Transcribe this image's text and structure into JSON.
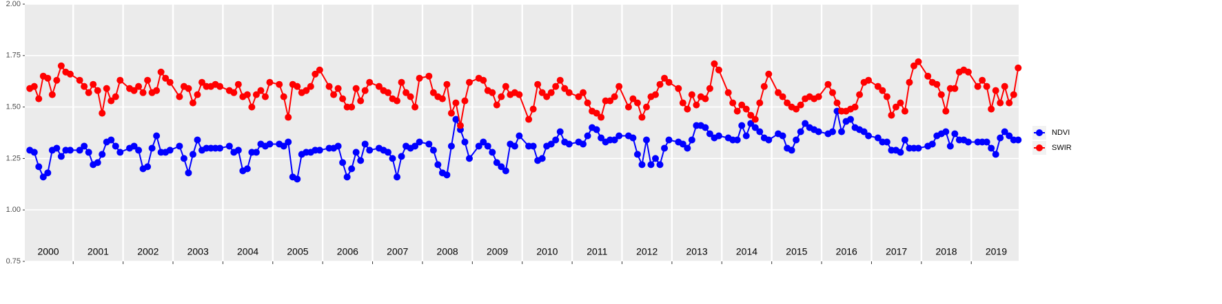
{
  "chart_data": {
    "type": "line",
    "x": [
      2000.13,
      2000.22,
      2000.31,
      2000.4,
      2000.49,
      2000.58,
      2000.67,
      2000.76,
      2000.85,
      2000.94,
      2001.13,
      2001.22,
      2001.31,
      2001.4,
      2001.49,
      2001.58,
      2001.67,
      2001.76,
      2001.85,
      2001.94,
      2002.13,
      2002.22,
      2002.31,
      2002.4,
      2002.49,
      2002.58,
      2002.67,
      2002.76,
      2002.85,
      2002.94,
      2003.13,
      2003.22,
      2003.31,
      2003.4,
      2003.49,
      2003.58,
      2003.67,
      2003.76,
      2003.85,
      2003.94,
      2004.13,
      2004.22,
      2004.31,
      2004.4,
      2004.49,
      2004.58,
      2004.67,
      2004.76,
      2004.85,
      2004.94,
      2005.13,
      2005.22,
      2005.31,
      2005.4,
      2005.49,
      2005.58,
      2005.67,
      2005.76,
      2005.85,
      2005.94,
      2006.13,
      2006.22,
      2006.31,
      2006.4,
      2006.49,
      2006.58,
      2006.67,
      2006.76,
      2006.85,
      2006.94,
      2007.13,
      2007.22,
      2007.31,
      2007.4,
      2007.49,
      2007.58,
      2007.67,
      2007.76,
      2007.85,
      2007.94,
      2008.13,
      2008.22,
      2008.31,
      2008.4,
      2008.49,
      2008.58,
      2008.67,
      2008.76,
      2008.85,
      2008.94,
      2009.13,
      2009.22,
      2009.31,
      2009.4,
      2009.49,
      2009.58,
      2009.67,
      2009.76,
      2009.85,
      2009.94,
      2010.13,
      2010.22,
      2010.31,
      2010.4,
      2010.49,
      2010.58,
      2010.67,
      2010.76,
      2010.85,
      2010.94,
      2011.13,
      2011.22,
      2011.31,
      2011.4,
      2011.49,
      2011.58,
      2011.67,
      2011.76,
      2011.85,
      2011.94,
      2012.13,
      2012.22,
      2012.31,
      2012.4,
      2012.49,
      2012.58,
      2012.67,
      2012.76,
      2012.85,
      2012.94,
      2013.13,
      2013.22,
      2013.31,
      2013.4,
      2013.49,
      2013.58,
      2013.67,
      2013.76,
      2013.85,
      2013.94,
      2014.13,
      2014.22,
      2014.31,
      2014.4,
      2014.49,
      2014.58,
      2014.67,
      2014.76,
      2014.85,
      2014.94,
      2015.13,
      2015.22,
      2015.31,
      2015.4,
      2015.49,
      2015.58,
      2015.67,
      2015.76,
      2015.85,
      2015.94,
      2016.13,
      2016.22,
      2016.31,
      2016.4,
      2016.49,
      2016.58,
      2016.67,
      2016.76,
      2016.85,
      2016.94,
      2017.13,
      2017.22,
      2017.31,
      2017.4,
      2017.49,
      2017.58,
      2017.67,
      2017.76,
      2017.85,
      2017.94,
      2018.13,
      2018.22,
      2018.31,
      2018.4,
      2018.49,
      2018.58,
      2018.67,
      2018.76,
      2018.85,
      2018.94,
      2019.13,
      2019.22,
      2019.31,
      2019.4,
      2019.49,
      2019.58,
      2019.67,
      2019.76,
      2019.85,
      2019.94
    ],
    "series": [
      {
        "name": "NDVI",
        "color": "#0000ff",
        "values": [
          1.29,
          1.28,
          1.21,
          1.16,
          1.18,
          1.29,
          1.3,
          1.26,
          1.29,
          1.29,
          1.29,
          1.31,
          1.28,
          1.22,
          1.23,
          1.27,
          1.33,
          1.34,
          1.31,
          1.28,
          1.3,
          1.31,
          1.29,
          1.2,
          1.21,
          1.3,
          1.36,
          1.28,
          1.28,
          1.29,
          1.31,
          1.25,
          1.18,
          1.27,
          1.34,
          1.29,
          1.3,
          1.3,
          1.3,
          1.3,
          1.31,
          1.28,
          1.29,
          1.19,
          1.2,
          1.28,
          1.28,
          1.32,
          1.31,
          1.32,
          1.32,
          1.31,
          1.33,
          1.16,
          1.15,
          1.27,
          1.28,
          1.28,
          1.29,
          1.29,
          1.3,
          1.3,
          1.31,
          1.23,
          1.16,
          1.2,
          1.28,
          1.24,
          1.32,
          1.29,
          1.3,
          1.29,
          1.28,
          1.25,
          1.16,
          1.26,
          1.31,
          1.3,
          1.31,
          1.33,
          1.32,
          1.29,
          1.22,
          1.18,
          1.17,
          1.31,
          1.44,
          1.39,
          1.33,
          1.25,
          1.31,
          1.33,
          1.31,
          1.28,
          1.23,
          1.21,
          1.19,
          1.32,
          1.31,
          1.36,
          1.31,
          1.31,
          1.24,
          1.25,
          1.31,
          1.32,
          1.34,
          1.38,
          1.33,
          1.32,
          1.33,
          1.32,
          1.36,
          1.4,
          1.39,
          1.35,
          1.33,
          1.34,
          1.34,
          1.36,
          1.36,
          1.35,
          1.27,
          1.22,
          1.34,
          1.22,
          1.25,
          1.22,
          1.3,
          1.34,
          1.33,
          1.32,
          1.3,
          1.34,
          1.41,
          1.41,
          1.4,
          1.37,
          1.35,
          1.36,
          1.35,
          1.34,
          1.34,
          1.41,
          1.36,
          1.42,
          1.4,
          1.38,
          1.35,
          1.34,
          1.37,
          1.36,
          1.3,
          1.29,
          1.34,
          1.38,
          1.42,
          1.4,
          1.39,
          1.38,
          1.37,
          1.38,
          1.48,
          1.38,
          1.43,
          1.44,
          1.4,
          1.39,
          1.38,
          1.36,
          1.35,
          1.33,
          1.33,
          1.29,
          1.29,
          1.28,
          1.34,
          1.3,
          1.3,
          1.3,
          1.31,
          1.32,
          1.36,
          1.37,
          1.38,
          1.31,
          1.37,
          1.34,
          1.34,
          1.33,
          1.33,
          1.33,
          1.33,
          1.3,
          1.27,
          1.35,
          1.38,
          1.36,
          1.34,
          1.34
        ]
      },
      {
        "name": "SWIR",
        "color": "#ff0000",
        "values": [
          1.59,
          1.6,
          1.54,
          1.65,
          1.64,
          1.56,
          1.63,
          1.7,
          1.67,
          1.66,
          1.63,
          1.6,
          1.57,
          1.61,
          1.58,
          1.47,
          1.59,
          1.53,
          1.55,
          1.63,
          1.59,
          1.58,
          1.6,
          1.57,
          1.63,
          1.57,
          1.58,
          1.67,
          1.64,
          1.62,
          1.55,
          1.6,
          1.59,
          1.52,
          1.56,
          1.62,
          1.6,
          1.6,
          1.61,
          1.6,
          1.58,
          1.57,
          1.61,
          1.55,
          1.56,
          1.5,
          1.56,
          1.58,
          1.55,
          1.62,
          1.61,
          1.55,
          1.45,
          1.61,
          1.6,
          1.57,
          1.58,
          1.6,
          1.66,
          1.68,
          1.6,
          1.56,
          1.59,
          1.54,
          1.5,
          1.5,
          1.59,
          1.53,
          1.58,
          1.62,
          1.6,
          1.58,
          1.57,
          1.54,
          1.53,
          1.62,
          1.57,
          1.55,
          1.5,
          1.64,
          1.65,
          1.57,
          1.55,
          1.54,
          1.61,
          1.47,
          1.52,
          1.41,
          1.53,
          1.62,
          1.64,
          1.63,
          1.58,
          1.57,
          1.51,
          1.55,
          1.6,
          1.56,
          1.57,
          1.56,
          1.44,
          1.49,
          1.61,
          1.57,
          1.55,
          1.57,
          1.6,
          1.63,
          1.59,
          1.57,
          1.55,
          1.57,
          1.52,
          1.48,
          1.47,
          1.45,
          1.53,
          1.53,
          1.55,
          1.6,
          1.5,
          1.54,
          1.52,
          1.45,
          1.5,
          1.55,
          1.56,
          1.61,
          1.64,
          1.62,
          1.59,
          1.52,
          1.49,
          1.56,
          1.51,
          1.55,
          1.54,
          1.59,
          1.71,
          1.68,
          1.57,
          1.52,
          1.48,
          1.51,
          1.49,
          1.46,
          1.44,
          1.52,
          1.6,
          1.66,
          1.57,
          1.55,
          1.52,
          1.5,
          1.49,
          1.51,
          1.54,
          1.55,
          1.54,
          1.55,
          1.61,
          1.57,
          1.52,
          1.48,
          1.48,
          1.49,
          1.5,
          1.56,
          1.62,
          1.63,
          1.6,
          1.58,
          1.55,
          1.46,
          1.5,
          1.52,
          1.48,
          1.62,
          1.7,
          1.72,
          1.65,
          1.62,
          1.61,
          1.56,
          1.48,
          1.59,
          1.59,
          1.67,
          1.68,
          1.67,
          1.6,
          1.63,
          1.6,
          1.49,
          1.58,
          1.52,
          1.6,
          1.52,
          1.56,
          1.69
        ]
      }
    ],
    "xlim": [
      2000.03,
      2019.95
    ],
    "xgrid": [
      2001,
      2002,
      2003,
      2004,
      2005,
      2006,
      2007,
      2008,
      2009,
      2010,
      2011,
      2012,
      2013,
      2014,
      2015,
      2016,
      2017,
      2018,
      2019
    ],
    "xticks": [
      {
        "value": 2000.5,
        "label": "2000"
      },
      {
        "value": 2001.5,
        "label": "2001"
      },
      {
        "value": 2002.5,
        "label": "2002"
      },
      {
        "value": 2003.5,
        "label": "2003"
      },
      {
        "value": 2004.5,
        "label": "2004"
      },
      {
        "value": 2005.5,
        "label": "2005"
      },
      {
        "value": 2006.5,
        "label": "2006"
      },
      {
        "value": 2007.5,
        "label": "2007"
      },
      {
        "value": 2008.5,
        "label": "2008"
      },
      {
        "value": 2009.5,
        "label": "2009"
      },
      {
        "value": 2010.5,
        "label": "2010"
      },
      {
        "value": 2011.5,
        "label": "2011"
      },
      {
        "value": 2012.5,
        "label": "2012"
      },
      {
        "value": 2013.5,
        "label": "2013"
      },
      {
        "value": 2014.5,
        "label": "2014"
      },
      {
        "value": 2015.5,
        "label": "2015"
      },
      {
        "value": 2016.5,
        "label": "2016"
      },
      {
        "value": 2017.5,
        "label": "2017"
      },
      {
        "value": 2018.5,
        "label": "2018"
      },
      {
        "value": 2019.5,
        "label": "2019"
      }
    ],
    "ylim": [
      0.75,
      2
    ],
    "yticks": [
      {
        "value": 0.75,
        "label": "0.75"
      },
      {
        "value": 1,
        "label": "1.00"
      },
      {
        "value": 1.25,
        "label": "1.25"
      },
      {
        "value": 1.5,
        "label": "1.50"
      },
      {
        "value": 1.75,
        "label": "1.75"
      },
      {
        "value": 2,
        "label": "2.00"
      }
    ],
    "grid": true,
    "legend": "right"
  }
}
